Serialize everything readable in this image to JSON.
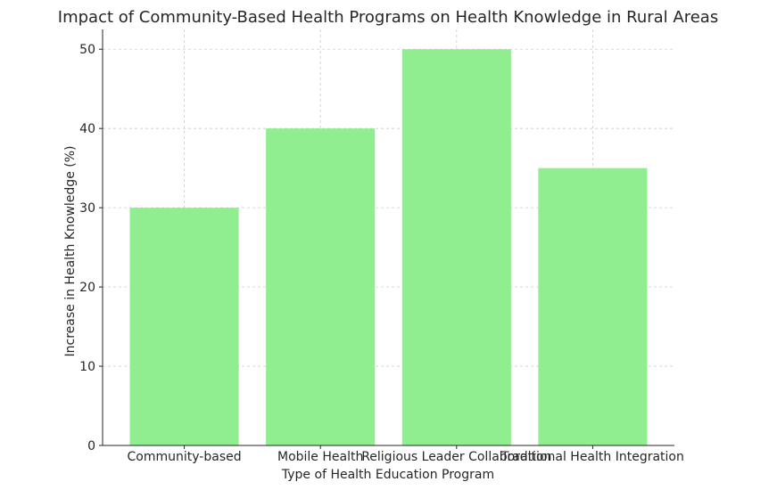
{
  "chart_data": {
    "type": "bar",
    "title": "Impact of Community-Based Health Programs on Health Knowledge in Rural Areas",
    "xlabel": "Type of Health Education Program",
    "ylabel": "Increase in Health Knowledge (%)",
    "categories": [
      "Community-based",
      "Mobile Health",
      "Religious Leader Collaboration",
      "Traditional Health Integration"
    ],
    "values": [
      30,
      40,
      50,
      35
    ],
    "ylim": [
      0,
      52.5
    ],
    "yticks": [
      0,
      10,
      20,
      30,
      40,
      50
    ],
    "bar_color": "#90ee90",
    "grid": true
  }
}
